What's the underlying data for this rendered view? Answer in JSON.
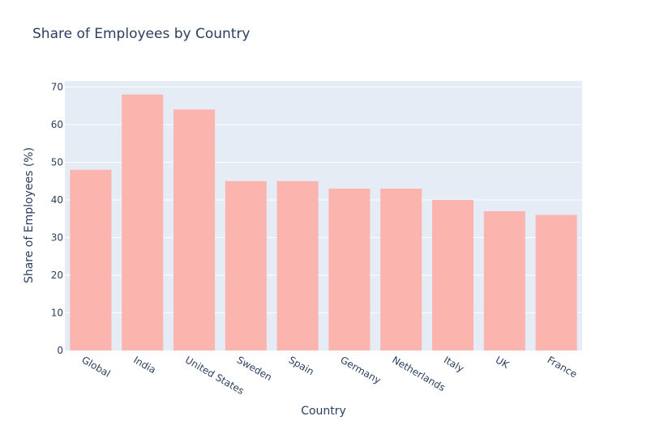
{
  "chart_data": {
    "type": "bar",
    "title": "Share of Employees by Country",
    "xlabel": "Country",
    "ylabel": "Share of Employees (%)",
    "categories": [
      "Global",
      "India",
      "United States",
      "Sweden",
      "Spain",
      "Germany",
      "Netherlands",
      "Italy",
      "UK",
      "France"
    ],
    "values": [
      48,
      68,
      64,
      45,
      45,
      43,
      43,
      40,
      37,
      36
    ],
    "ylim": [
      0,
      71.6
    ],
    "yticks": [
      0,
      10,
      20,
      30,
      40,
      50,
      60,
      70
    ],
    "grid": true,
    "colors": {
      "bar": "#fbb4ae",
      "plot_background": "#e5ecf6",
      "grid": "#ffffff",
      "text": "#2a3f5f"
    }
  }
}
